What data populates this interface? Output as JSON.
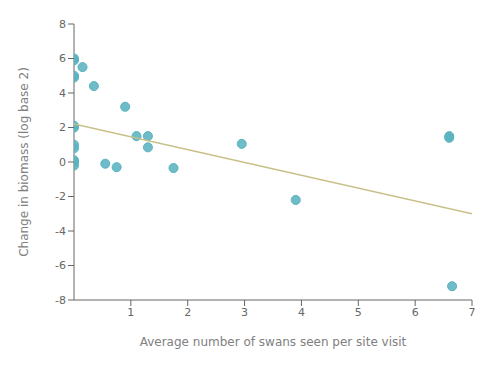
{
  "chart_data": {
    "type": "scatter",
    "xlabel": "Average number of swans seen per site visit",
    "ylabel": "Change in biomass (log base 2)",
    "xlim": [
      0,
      7
    ],
    "ylim": [
      -8,
      8
    ],
    "xticks": [
      1,
      2,
      3,
      4,
      5,
      6,
      7
    ],
    "yticks": [
      -8,
      -6,
      -4,
      -2,
      0,
      2,
      4,
      6,
      8
    ],
    "grid": false,
    "series": [
      {
        "type": "scatter",
        "color": "#5ab3c0",
        "x": [
          0.0,
          0.0,
          0.0,
          0.0,
          0.0,
          0.0,
          0.0,
          0.0,
          0.0,
          0.0,
          0.0,
          0.15,
          0.35,
          0.55,
          0.75,
          0.9,
          1.1,
          1.3,
          1.3,
          1.75,
          2.95,
          3.9,
          6.6,
          6.6,
          6.65
        ],
        "values": [
          6.0,
          5.9,
          5.0,
          4.9,
          2.1,
          2.0,
          1.0,
          0.8,
          0.1,
          0.0,
          -0.2,
          5.5,
          4.4,
          -0.1,
          -0.3,
          3.2,
          1.5,
          1.5,
          0.85,
          -0.35,
          1.05,
          -2.2,
          1.5,
          1.4,
          -7.2
        ]
      },
      {
        "type": "line",
        "color": "#c8c088",
        "x": [
          0.0,
          7.0
        ],
        "values": [
          2.2,
          -3.0
        ]
      }
    ]
  }
}
